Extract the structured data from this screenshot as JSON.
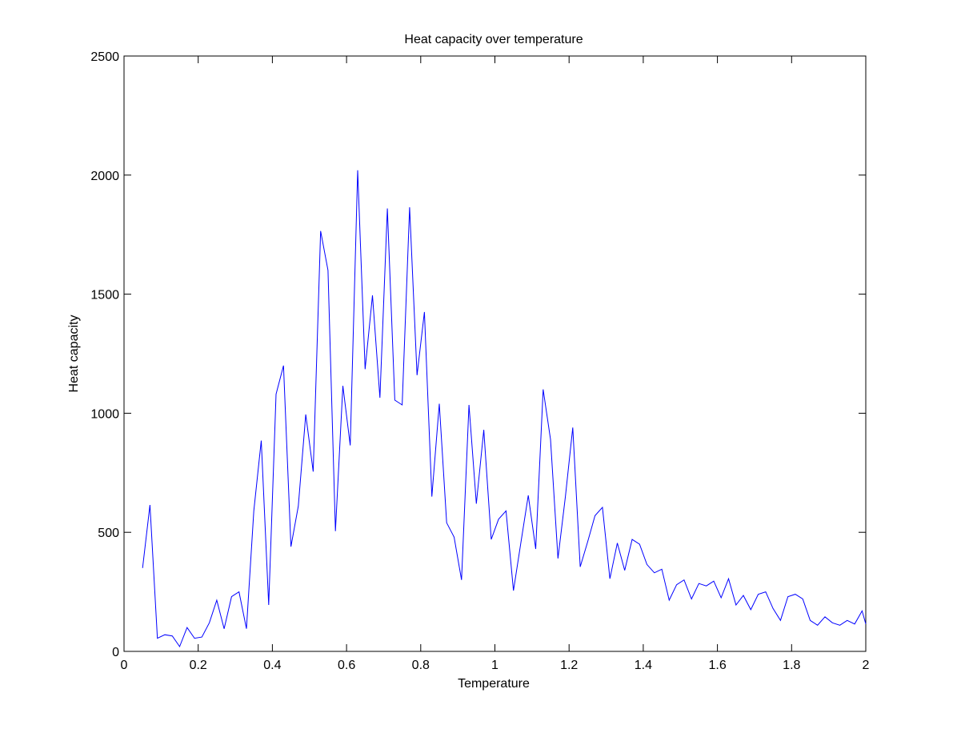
{
  "chart_data": {
    "type": "line",
    "title": "Heat capacity over temperature",
    "xlabel": "Temperature",
    "ylabel": "Heat capacity",
    "xlim": [
      0,
      2
    ],
    "ylim": [
      0,
      2500
    ],
    "xticks": [
      0,
      0.2,
      0.4,
      0.6,
      0.8,
      1,
      1.2,
      1.4,
      1.6,
      1.8,
      2
    ],
    "xtick_labels": [
      "0",
      "0.2",
      "0.4",
      "0.6",
      "0.8",
      "1",
      "1.2",
      "1.4",
      "1.6",
      "1.8",
      "2"
    ],
    "yticks": [
      0,
      500,
      1000,
      1500,
      2000,
      2500
    ],
    "ytick_labels": [
      "0",
      "500",
      "1000",
      "1500",
      "2000",
      "2500"
    ],
    "grid": false,
    "legend": "none",
    "line_color": "#0000ff",
    "x": [
      0.05,
      0.07,
      0.09,
      0.11,
      0.13,
      0.15,
      0.17,
      0.19,
      0.21,
      0.23,
      0.25,
      0.27,
      0.29,
      0.31,
      0.33,
      0.35,
      0.37,
      0.39,
      0.41,
      0.43,
      0.45,
      0.47,
      0.49,
      0.51,
      0.53,
      0.55,
      0.57,
      0.59,
      0.61,
      0.63,
      0.65,
      0.67,
      0.69,
      0.71,
      0.73,
      0.75,
      0.77,
      0.79,
      0.81,
      0.83,
      0.85,
      0.87,
      0.89,
      0.91,
      0.93,
      0.95,
      0.97,
      0.99,
      1.01,
      1.03,
      1.05,
      1.07,
      1.09,
      1.11,
      1.13,
      1.15,
      1.17,
      1.19,
      1.21,
      1.23,
      1.25,
      1.27,
      1.29,
      1.31,
      1.33,
      1.35,
      1.37,
      1.39,
      1.41,
      1.43,
      1.45,
      1.47,
      1.49,
      1.51,
      1.53,
      1.55,
      1.57,
      1.59,
      1.61,
      1.63,
      1.65,
      1.67,
      1.69,
      1.71,
      1.73,
      1.75,
      1.77,
      1.79,
      1.81,
      1.83,
      1.85,
      1.87,
      1.89,
      1.91,
      1.93,
      1.95,
      1.97,
      1.99,
      2.0
    ],
    "y": [
      350,
      615,
      55,
      70,
      65,
      20,
      100,
      55,
      60,
      120,
      215,
      95,
      230,
      250,
      95,
      590,
      885,
      195,
      1080,
      1200,
      440,
      610,
      995,
      755,
      1765,
      1600,
      505,
      1115,
      865,
      2020,
      1185,
      1495,
      1065,
      1860,
      1055,
      1035,
      1865,
      1160,
      1425,
      650,
      1040,
      540,
      480,
      300,
      1035,
      620,
      930,
      470,
      555,
      590,
      255,
      455,
      655,
      430,
      1100,
      890,
      390,
      650,
      940,
      355,
      460,
      570,
      605,
      305,
      455,
      340,
      470,
      450,
      365,
      330,
      345,
      215,
      280,
      300,
      220,
      285,
      275,
      295,
      225,
      305,
      195,
      235,
      175,
      240,
      250,
      180,
      130,
      230,
      240,
      220,
      130,
      110,
      145,
      120,
      110,
      130,
      115,
      170,
      115
    ]
  }
}
